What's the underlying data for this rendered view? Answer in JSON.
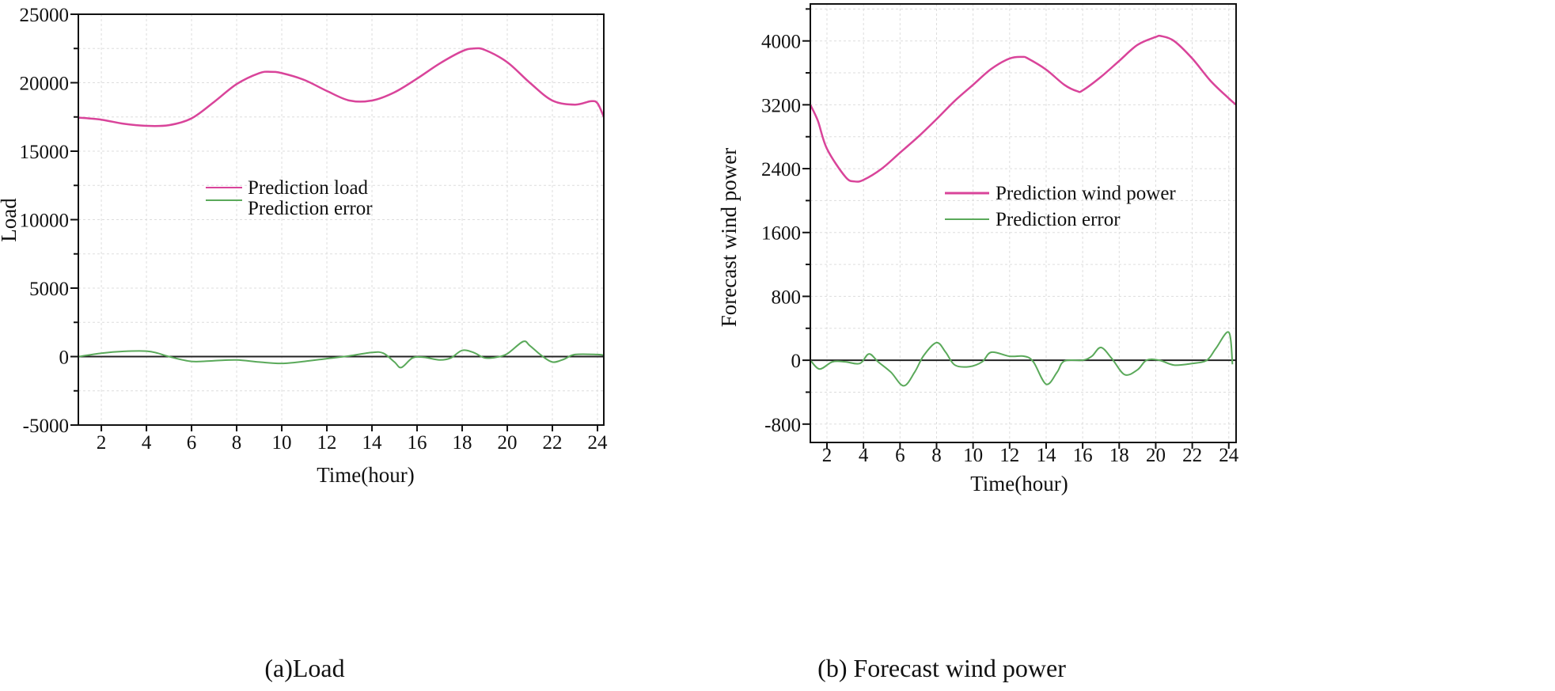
{
  "chart_data": [
    {
      "type": "line",
      "title": "(a)Load",
      "xlabel": "Time(hour)",
      "ylabel": "Load",
      "xlim": [
        0.98,
        24.28
      ],
      "ylim": [
        -5000,
        25000
      ],
      "xticks": [
        2,
        4,
        6,
        8,
        10,
        12,
        14,
        16,
        18,
        20,
        22,
        24
      ],
      "yticks": [
        -5000,
        0,
        5000,
        10000,
        15000,
        20000,
        25000
      ],
      "yminor": 2500,
      "grid": true,
      "legend_position": "center",
      "series": [
        {
          "name": "Prediction load",
          "color": "#d9449a",
          "x": [
            1,
            2,
            3,
            4,
            5,
            6,
            7,
            8,
            9,
            9.5,
            10,
            11,
            12,
            13,
            14,
            15,
            16,
            17,
            18,
            18.5,
            19,
            20,
            21,
            22,
            23,
            23.7,
            24,
            24.28
          ],
          "y": [
            17450,
            17300,
            17000,
            16850,
            16900,
            17400,
            18600,
            19900,
            20700,
            20800,
            20700,
            20200,
            19400,
            18700,
            18700,
            19300,
            20300,
            21400,
            22300,
            22500,
            22400,
            21500,
            20000,
            18700,
            18400,
            18650,
            18500,
            17500
          ]
        },
        {
          "name": "Prediction error",
          "color": "#5aa95a",
          "x": [
            1,
            2,
            3,
            4,
            4.5,
            5,
            6,
            7,
            8,
            9,
            10,
            11,
            12,
            13,
            14,
            14.5,
            15,
            15.3,
            15.8,
            16.3,
            17,
            17.5,
            18,
            18.5,
            19,
            19.5,
            20,
            20.7,
            21,
            21.5,
            22,
            22.5,
            23,
            24,
            24.28
          ],
          "y": [
            0,
            250,
            380,
            400,
            250,
            0,
            -350,
            -300,
            -250,
            -400,
            -500,
            -350,
            -150,
            50,
            300,
            250,
            -400,
            -800,
            -100,
            -50,
            -250,
            -100,
            450,
            300,
            -100,
            -50,
            200,
            1100,
            800,
            100,
            -400,
            -200,
            150,
            150,
            100
          ]
        }
      ]
    },
    {
      "type": "line",
      "title": "(b) Forecast wind power",
      "xlabel": "Time(hour)",
      "ylabel": "Forecast wind power",
      "xlim": [
        1.09,
        24.4
      ],
      "ylim": [
        -1030,
        4463
      ],
      "xticks": [
        2,
        4,
        6,
        8,
        10,
        12,
        14,
        16,
        18,
        20,
        22,
        24
      ],
      "yticks": [
        -800,
        0,
        800,
        1600,
        2400,
        3200,
        4000
      ],
      "yminor": 400,
      "grid": true,
      "legend_position": "center-right",
      "series": [
        {
          "name": "Prediction wind power",
          "color": "#d9449a",
          "x": [
            1.09,
            1.5,
            2,
            3,
            3.5,
            4,
            5,
            6,
            7,
            8,
            9,
            10,
            11,
            12,
            12.7,
            13,
            14,
            15,
            15.7,
            16,
            17,
            18,
            19,
            20,
            20.3,
            21,
            22,
            23,
            24,
            24.4
          ],
          "y": [
            3200,
            3000,
            2650,
            2300,
            2240,
            2260,
            2400,
            2600,
            2800,
            3020,
            3250,
            3450,
            3650,
            3780,
            3800,
            3780,
            3640,
            3450,
            3370,
            3380,
            3550,
            3750,
            3950,
            4050,
            4060,
            4000,
            3780,
            3500,
            3280,
            3200
          ]
        },
        {
          "name": "Prediction error",
          "color": "#5aa95a",
          "x": [
            1.09,
            1.6,
            2.3,
            3,
            3.8,
            4.3,
            4.8,
            5.5,
            6.2,
            6.8,
            7.3,
            8,
            8.5,
            9,
            9.8,
            10.5,
            11,
            12,
            12.8,
            13.3,
            14,
            14.6,
            15,
            16,
            16.5,
            17,
            17.6,
            18.3,
            19,
            19.5,
            20.2,
            21,
            22,
            22.8,
            23.3,
            24,
            24.2
          ],
          "y": [
            0,
            -110,
            -20,
            -20,
            -40,
            80,
            -20,
            -150,
            -320,
            -150,
            60,
            220,
            100,
            -60,
            -80,
            -20,
            100,
            50,
            50,
            -20,
            -300,
            -150,
            -10,
            0,
            50,
            160,
            20,
            -180,
            -120,
            0,
            0,
            -60,
            -40,
            0,
            150,
            350,
            -50
          ]
        }
      ]
    }
  ]
}
